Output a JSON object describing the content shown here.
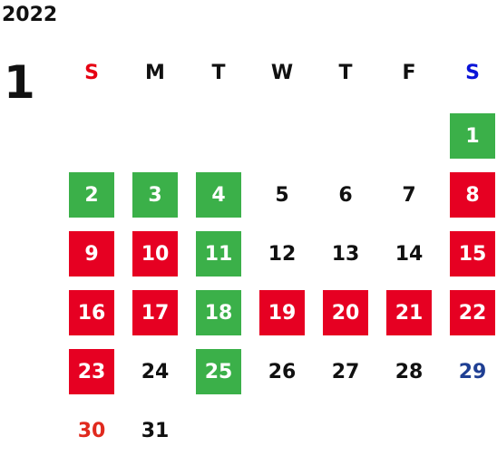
{
  "year": "2022",
  "month": "1",
  "weekdays": [
    {
      "label": "S",
      "color": "#e60012"
    },
    {
      "label": "M",
      "color": "#111111"
    },
    {
      "label": "T",
      "color": "#111111"
    },
    {
      "label": "W",
      "color": "#111111"
    },
    {
      "label": "T",
      "color": "#111111"
    },
    {
      "label": "F",
      "color": "#111111"
    },
    {
      "label": "S",
      "color": "#0a14d8"
    }
  ],
  "weeks": [
    [
      null,
      null,
      null,
      null,
      null,
      null,
      {
        "day": "1",
        "bg": "#3bb049"
      }
    ],
    [
      {
        "day": "2",
        "bg": "#3bb049"
      },
      {
        "day": "3",
        "bg": "#3bb049"
      },
      {
        "day": "4",
        "bg": "#3bb049"
      },
      {
        "day": "5"
      },
      {
        "day": "6"
      },
      {
        "day": "7"
      },
      {
        "day": "8",
        "bg": "#e60022"
      }
    ],
    [
      {
        "day": "9",
        "bg": "#e60022"
      },
      {
        "day": "10",
        "bg": "#e60022"
      },
      {
        "day": "11",
        "bg": "#3bb049"
      },
      {
        "day": "12"
      },
      {
        "day": "13"
      },
      {
        "day": "14"
      },
      {
        "day": "15",
        "bg": "#e60022"
      }
    ],
    [
      {
        "day": "16",
        "bg": "#e60022"
      },
      {
        "day": "17",
        "bg": "#e60022"
      },
      {
        "day": "18",
        "bg": "#3bb049"
      },
      {
        "day": "19",
        "bg": "#e60022"
      },
      {
        "day": "20",
        "bg": "#e60022"
      },
      {
        "day": "21",
        "bg": "#e60022"
      },
      {
        "day": "22",
        "bg": "#e60022"
      }
    ],
    [
      {
        "day": "23",
        "bg": "#e60022"
      },
      {
        "day": "24"
      },
      {
        "day": "25",
        "bg": "#3bb049"
      },
      {
        "day": "26"
      },
      {
        "day": "27"
      },
      {
        "day": "28"
      },
      {
        "day": "29",
        "fg": "#1f3f93"
      }
    ],
    [
      {
        "day": "30",
        "fg": "#e02a1e"
      },
      {
        "day": "31"
      }
    ]
  ]
}
